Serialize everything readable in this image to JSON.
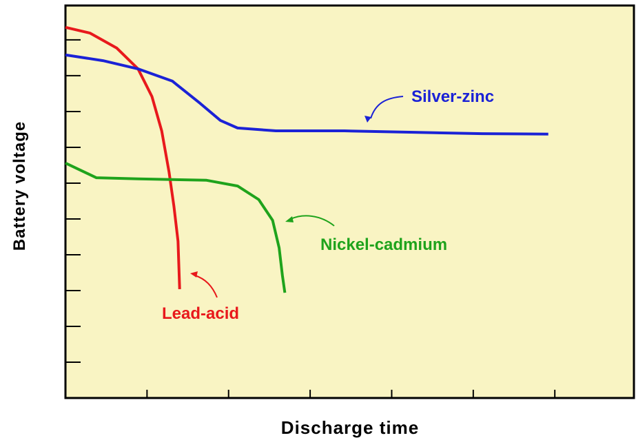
{
  "chart_data": {
    "type": "line",
    "xlabel": "Discharge time",
    "ylabel": "Battery voltage",
    "xlim": [
      0,
      6.97
    ],
    "ylim": [
      0,
      10.96
    ],
    "xticks": [
      1,
      2,
      3,
      4,
      5,
      6
    ],
    "yticks": [
      1,
      2,
      3,
      4,
      5,
      6,
      7,
      8,
      9,
      10
    ],
    "grid": false,
    "series": [
      {
        "name": "Lead-acid",
        "color": "#e8191c",
        "x": [
          0,
          0.3,
          0.63,
          0.89,
          1.06,
          1.18,
          1.27,
          1.33,
          1.38,
          1.4
        ],
        "values": [
          10.35,
          10.19,
          9.77,
          9.19,
          8.42,
          7.46,
          6.31,
          5.35,
          4.38,
          3.04
        ]
      },
      {
        "name": "Silver-zinc",
        "color": "#1b22d6",
        "x": [
          0,
          0.46,
          0.89,
          1.31,
          1.65,
          1.9,
          2.11,
          2.58,
          3.42,
          4.27,
          5.11,
          5.92
        ],
        "values": [
          9.58,
          9.42,
          9.19,
          8.85,
          8.23,
          7.75,
          7.54,
          7.46,
          7.46,
          7.42,
          7.38,
          7.37
        ]
      },
      {
        "name": "Nickel-cadmium",
        "color": "#1fa31c",
        "x": [
          0,
          0.38,
          0.89,
          1.73,
          2.11,
          2.37,
          2.54,
          2.62,
          2.66,
          2.69
        ],
        "values": [
          6.56,
          6.15,
          6.12,
          6.08,
          5.92,
          5.54,
          4.96,
          4.19,
          3.42,
          2.94
        ]
      }
    ]
  }
}
